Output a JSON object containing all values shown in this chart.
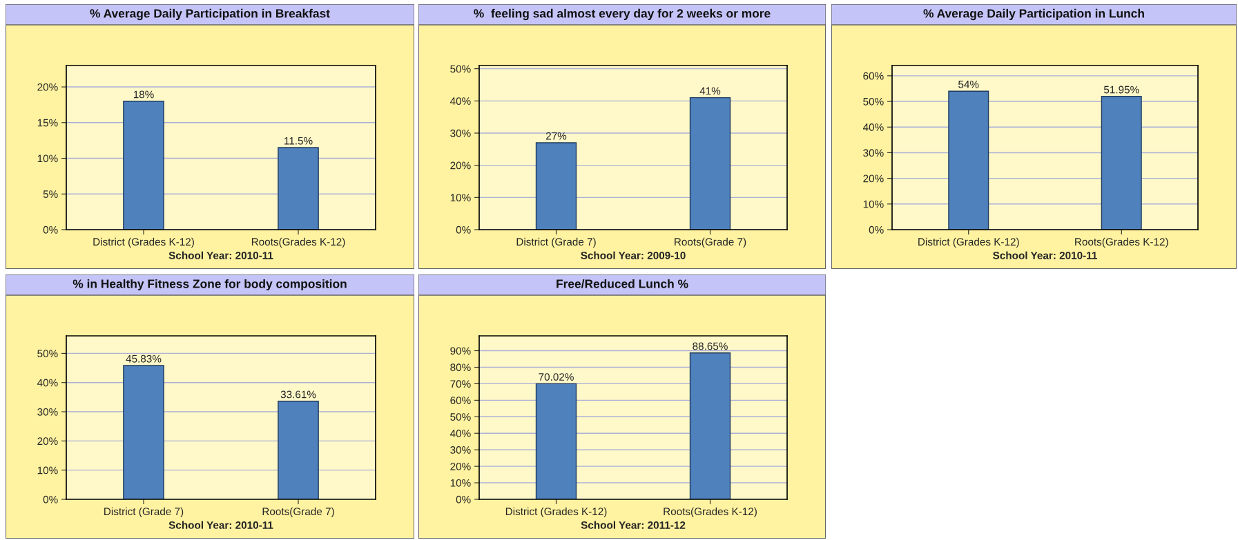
{
  "chart_data": [
    {
      "type": "bar",
      "title": "% Average Daily Participation in Breakfast",
      "xlabel": "School Year: 2010-11",
      "categories": [
        "District (Grades K-12)",
        "Roots(Grades K-12)"
      ],
      "values": [
        18,
        11.5
      ],
      "value_labels": [
        "18%",
        "11.5%"
      ],
      "color": "#4f81bd",
      "ylim": [
        0,
        23
      ],
      "yticks": [
        {
          "value": 0,
          "label": "0%"
        },
        {
          "value": 5,
          "label": "5%"
        },
        {
          "value": 10,
          "label": "10%"
        },
        {
          "value": 15,
          "label": "15%"
        },
        {
          "value": 20,
          "label": "20%"
        }
      ],
      "grid": "y"
    },
    {
      "type": "bar",
      "title": "%  feeling sad almost every day for 2 weeks or more",
      "xlabel": "School Year: 2009-10",
      "categories": [
        "District (Grade 7)",
        "Roots(Grade 7)"
      ],
      "values": [
        27,
        41
      ],
      "value_labels": [
        "27%",
        "41%"
      ],
      "color": "#4f81bd",
      "ylim": [
        0,
        51
      ],
      "yticks": [
        {
          "value": 0,
          "label": "0%"
        },
        {
          "value": 10,
          "label": "10%"
        },
        {
          "value": 20,
          "label": "20%"
        },
        {
          "value": 30,
          "label": "30%"
        },
        {
          "value": 40,
          "label": "40%"
        },
        {
          "value": 50,
          "label": "50%"
        }
      ],
      "grid": "y"
    },
    {
      "type": "bar",
      "title": "% Average Daily Participation in Lunch",
      "xlabel": "School Year: 2010-11",
      "categories": [
        "District (Grades K-12)",
        "Roots(Grades K-12)"
      ],
      "values": [
        54,
        51.95
      ],
      "value_labels": [
        "54%",
        "51.95%"
      ],
      "color": "#4f81bd",
      "ylim": [
        0,
        64
      ],
      "yticks": [
        {
          "value": 0,
          "label": "0%"
        },
        {
          "value": 10,
          "label": "10%"
        },
        {
          "value": 20,
          "label": "20%"
        },
        {
          "value": 30,
          "label": "30%"
        },
        {
          "value": 40,
          "label": "40%"
        },
        {
          "value": 50,
          "label": "50%"
        },
        {
          "value": 60,
          "label": "60%"
        }
      ],
      "grid": "y"
    },
    {
      "type": "bar",
      "title": "% in Healthy Fitness Zone for body composition",
      "xlabel": "School Year: 2010-11",
      "categories": [
        "District (Grade 7)",
        "Roots(Grade 7)"
      ],
      "values": [
        45.83,
        33.61
      ],
      "value_labels": [
        "45.83%",
        "33.61%"
      ],
      "color": "#4f81bd",
      "ylim": [
        0,
        56
      ],
      "yticks": [
        {
          "value": 0,
          "label": "0%"
        },
        {
          "value": 10,
          "label": "10%"
        },
        {
          "value": 20,
          "label": "20%"
        },
        {
          "value": 30,
          "label": "30%"
        },
        {
          "value": 40,
          "label": "40%"
        },
        {
          "value": 50,
          "label": "50%"
        }
      ],
      "grid": "y"
    },
    {
      "type": "bar",
      "title": "Free/Reduced Lunch %",
      "xlabel": "School Year: 2011-12",
      "categories": [
        "District (Grades K-12)",
        "Roots(Grades K-12)"
      ],
      "values": [
        70.02,
        88.65
      ],
      "value_labels": [
        "70.02%",
        "88.65%"
      ],
      "color": "#4f81bd",
      "ylim": [
        0,
        99
      ],
      "yticks": [
        {
          "value": 0,
          "label": "0%"
        },
        {
          "value": 10,
          "label": "10%"
        },
        {
          "value": 20,
          "label": "20%"
        },
        {
          "value": 30,
          "label": "30%"
        },
        {
          "value": 40,
          "label": "40%"
        },
        {
          "value": 50,
          "label": "50%"
        },
        {
          "value": 60,
          "label": "60%"
        },
        {
          "value": 70,
          "label": "70%"
        },
        {
          "value": 80,
          "label": "80%"
        },
        {
          "value": 90,
          "label": "90%"
        }
      ],
      "grid": "y"
    }
  ]
}
